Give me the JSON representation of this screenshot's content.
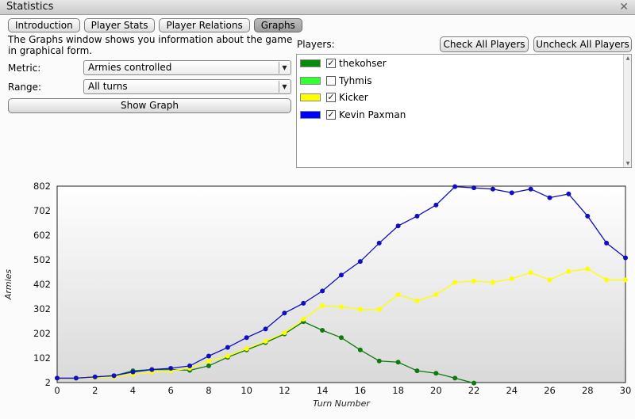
{
  "window": {
    "title": "Statistics",
    "close_symbol": "✕"
  },
  "tabs": [
    {
      "label": "Introduction",
      "active": false
    },
    {
      "label": "Player Stats",
      "active": false
    },
    {
      "label": "Player Relations",
      "active": false
    },
    {
      "label": "Graphs",
      "active": true
    }
  ],
  "description": "The Graphs window shows you information about the game in graphical form.",
  "metric": {
    "label": "Metric:",
    "value": "Armies controlled"
  },
  "range": {
    "label": "Range:",
    "value": "All turns"
  },
  "show_graph_label": "Show Graph",
  "players": {
    "label": "Players:",
    "check_all_label": "Check All Players",
    "uncheck_all_label": "Uncheck All Players",
    "list": [
      {
        "name": "thekohser",
        "color": "#0a8a0a",
        "checked": true
      },
      {
        "name": "Tyhmis",
        "color": "#33ff33",
        "checked": false
      },
      {
        "name": "Kicker",
        "color": "#ffff00",
        "checked": true
      },
      {
        "name": "Kevin Paxman",
        "color": "#0000ff",
        "checked": true
      }
    ]
  },
  "chart_data": {
    "type": "line",
    "xlabel": "Turn Number",
    "ylabel": "Armies",
    "xlim": [
      0,
      30
    ],
    "ylim": [
      2,
      802
    ],
    "x_ticks": [
      0,
      2,
      4,
      6,
      8,
      10,
      12,
      14,
      16,
      18,
      20,
      22,
      24,
      26,
      28,
      30
    ],
    "y_ticks": [
      2,
      102,
      202,
      302,
      402,
      502,
      602,
      702,
      802
    ],
    "grid": false,
    "series": [
      {
        "name": "thekohser",
        "color": "#0f7a0f",
        "x": [
          0,
          1,
          2,
          3,
          4,
          5,
          6,
          7,
          8,
          9,
          10,
          11,
          12,
          13,
          14,
          15,
          16,
          17,
          18,
          19,
          20,
          21,
          22
        ],
        "y": [
          20,
          20,
          25,
          30,
          50,
          55,
          55,
          52,
          70,
          105,
          135,
          165,
          200,
          250,
          215,
          185,
          135,
          90,
          85,
          50,
          40,
          20,
          0
        ]
      },
      {
        "name": "Kicker",
        "color": "#ffff00",
        "x": [
          0,
          1,
          2,
          3,
          4,
          5,
          6,
          7,
          8,
          9,
          10,
          11,
          12,
          13,
          14,
          15,
          16,
          17,
          18,
          19,
          20,
          21,
          22,
          23,
          24,
          25,
          26,
          27,
          28,
          29,
          30
        ],
        "y": [
          20,
          20,
          22,
          25,
          35,
          45,
          50,
          60,
          90,
          110,
          140,
          170,
          205,
          260,
          315,
          310,
          300,
          300,
          360,
          335,
          360,
          410,
          415,
          410,
          425,
          450,
          420,
          455,
          465,
          420,
          420
        ]
      },
      {
        "name": "Kevin Paxman",
        "color": "#1010c0",
        "x": [
          0,
          1,
          2,
          3,
          4,
          5,
          6,
          7,
          8,
          9,
          10,
          11,
          12,
          13,
          14,
          15,
          16,
          17,
          18,
          19,
          20,
          21,
          22,
          23,
          24,
          25,
          26,
          27,
          28,
          29,
          30
        ],
        "y": [
          20,
          20,
          25,
          30,
          45,
          55,
          60,
          70,
          110,
          145,
          185,
          220,
          285,
          325,
          375,
          440,
          495,
          570,
          640,
          680,
          725,
          800,
          795,
          790,
          775,
          790,
          755,
          770,
          680,
          570,
          510
        ]
      }
    ]
  }
}
